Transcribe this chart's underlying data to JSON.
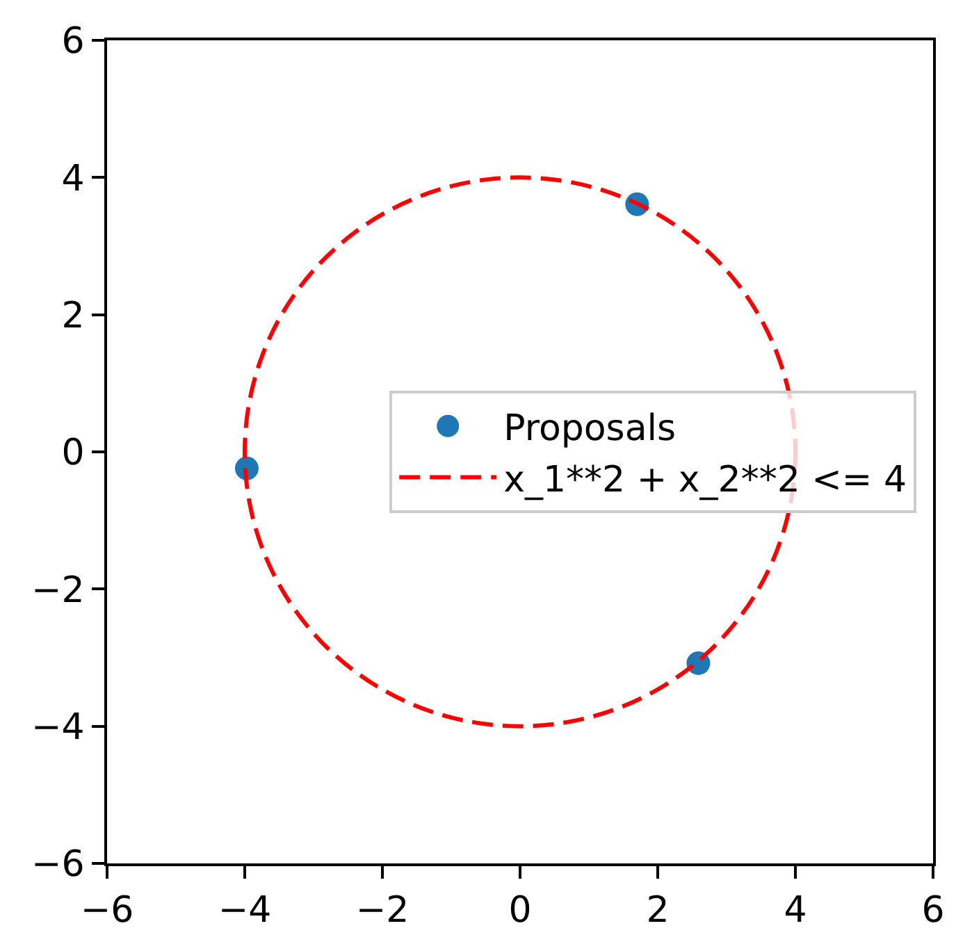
{
  "chart_data": {
    "type": "scatter",
    "xlim": [
      -6,
      6
    ],
    "ylim": [
      -6,
      6
    ],
    "xticks": [
      -6,
      -4,
      -2,
      0,
      2,
      4,
      6
    ],
    "yticks": [
      -6,
      -4,
      -2,
      0,
      2,
      4,
      6
    ],
    "legend": "right",
    "series": [
      {
        "name": "Proposals",
        "color": "#1f77b4",
        "marker": "circle",
        "x": [
          1.7,
          -3.97,
          2.59
        ],
        "values": [
          3.61,
          -0.24,
          -3.08
        ]
      },
      {
        "name": "x_1**2 + x_2**2 <= 4",
        "type": "line",
        "color": "#ff0000",
        "line_style": "dashed"
      }
    ]
  }
}
